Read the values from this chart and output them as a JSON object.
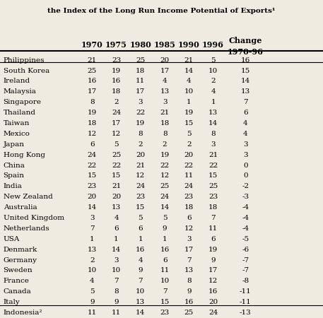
{
  "title_line2": "the Index of the Long Run Income Potential of Exports¹",
  "col_headers": [
    "",
    "1970",
    "1975",
    "1980",
    "1985",
    "1990",
    "1996",
    "Change\n1970-96"
  ],
  "countries": [
    "Philippines",
    "South Korea",
    "Ireland",
    "Malaysia",
    "Singapore",
    "Thailand",
    "Taiwan",
    "Mexico",
    "Japan",
    "Hong Kong",
    "China",
    "Spain",
    "India",
    "New Zealand",
    "Australia",
    "United Kingdom",
    "Netherlands",
    "USA",
    "Denmark",
    "Germany",
    "Sweden",
    "France",
    "Canada",
    "Italy",
    "Indonesia²"
  ],
  "data": [
    [
      21,
      23,
      25,
      20,
      21,
      5,
      16
    ],
    [
      25,
      19,
      18,
      17,
      14,
      10,
      15
    ],
    [
      16,
      16,
      11,
      4,
      4,
      2,
      14
    ],
    [
      17,
      18,
      17,
      13,
      10,
      4,
      13
    ],
    [
      8,
      2,
      3,
      3,
      1,
      1,
      7
    ],
    [
      19,
      24,
      22,
      21,
      19,
      13,
      6
    ],
    [
      18,
      17,
      19,
      18,
      15,
      14,
      4
    ],
    [
      12,
      12,
      8,
      8,
      5,
      8,
      4
    ],
    [
      6,
      5,
      2,
      2,
      2,
      3,
      3
    ],
    [
      24,
      25,
      20,
      19,
      20,
      21,
      3
    ],
    [
      22,
      22,
      21,
      22,
      22,
      22,
      0
    ],
    [
      15,
      15,
      12,
      12,
      11,
      15,
      0
    ],
    [
      23,
      21,
      24,
      25,
      24,
      25,
      -2
    ],
    [
      20,
      20,
      23,
      24,
      23,
      23,
      -3
    ],
    [
      14,
      13,
      15,
      14,
      18,
      18,
      -4
    ],
    [
      3,
      4,
      5,
      5,
      6,
      7,
      -4
    ],
    [
      7,
      6,
      6,
      9,
      12,
      11,
      -4
    ],
    [
      1,
      1,
      1,
      1,
      3,
      6,
      -5
    ],
    [
      13,
      14,
      16,
      16,
      17,
      19,
      -6
    ],
    [
      2,
      3,
      4,
      6,
      7,
      9,
      -7
    ],
    [
      10,
      10,
      9,
      11,
      13,
      17,
      -7
    ],
    [
      4,
      7,
      7,
      10,
      8,
      12,
      -8
    ],
    [
      5,
      8,
      10,
      7,
      9,
      16,
      -11
    ],
    [
      9,
      9,
      13,
      15,
      16,
      20,
      -11
    ],
    [
      11,
      11,
      14,
      23,
      25,
      24,
      -13
    ]
  ],
  "bg_color": "#f0ebe0",
  "text_color": "#000000",
  "title_fontsize": 7.5,
  "header_fontsize": 8.0,
  "data_fontsize": 7.5
}
